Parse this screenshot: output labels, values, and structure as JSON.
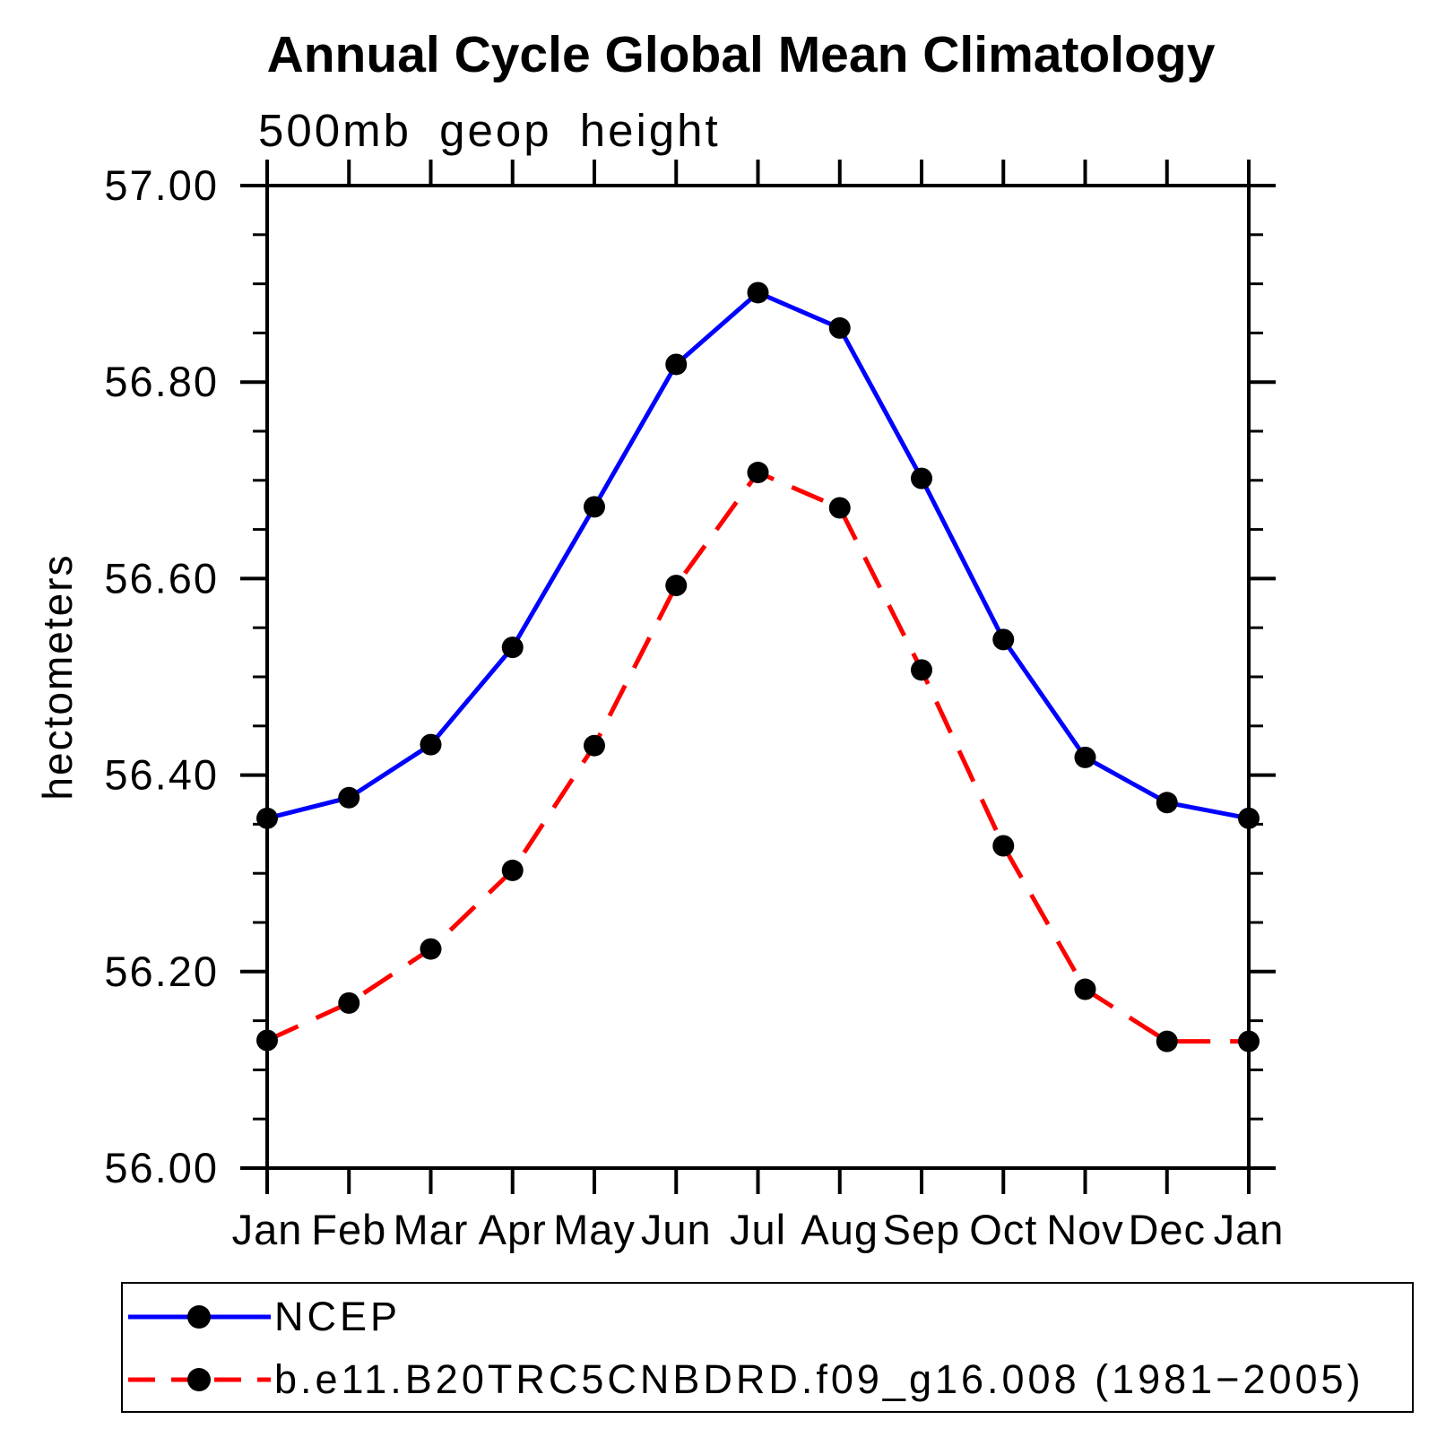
{
  "title": "Annual Cycle Global Mean Climatology",
  "subtitle": "500mb geop height",
  "ylabel": "hectometers",
  "chart_data": {
    "type": "line",
    "categories": [
      "Jan",
      "Feb",
      "Mar",
      "Apr",
      "May",
      "Jun",
      "Jul",
      "Aug",
      "Sep",
      "Oct",
      "Nov",
      "Dec",
      "Jan"
    ],
    "series": [
      {
        "name": "NCEP",
        "color": "#0000ff",
        "style": "solid",
        "marker": "circle",
        "marker_color": "#000000",
        "values": [
          56.356,
          56.377,
          56.431,
          56.53,
          56.673,
          56.818,
          56.891,
          56.855,
          56.702,
          56.538,
          56.418,
          56.372,
          56.356
        ]
      },
      {
        "name": "b.e11.B20TRC5CNBDRD.f09_g16.008 (1981−2005)",
        "color": "#ff0000",
        "style": "dashed",
        "marker": "circle",
        "marker_color": "#000000",
        "values": [
          56.13,
          56.168,
          56.223,
          56.303,
          56.43,
          56.593,
          56.708,
          56.672,
          56.507,
          56.328,
          56.182,
          56.129,
          56.129
        ]
      }
    ],
    "ylabel": "hectometers",
    "xlabel": "",
    "ylim": [
      56.0,
      57.0
    ],
    "yticks_major": [
      57.0,
      56.8,
      56.6,
      56.4,
      56.2,
      56.0
    ],
    "ytick_labels": [
      "57.00",
      "56.80",
      "56.60",
      "56.40",
      "56.20",
      "56.00"
    ],
    "yminor_step": 0.05,
    "grid": false,
    "frame": "box",
    "legend_position": "bottom-box"
  }
}
